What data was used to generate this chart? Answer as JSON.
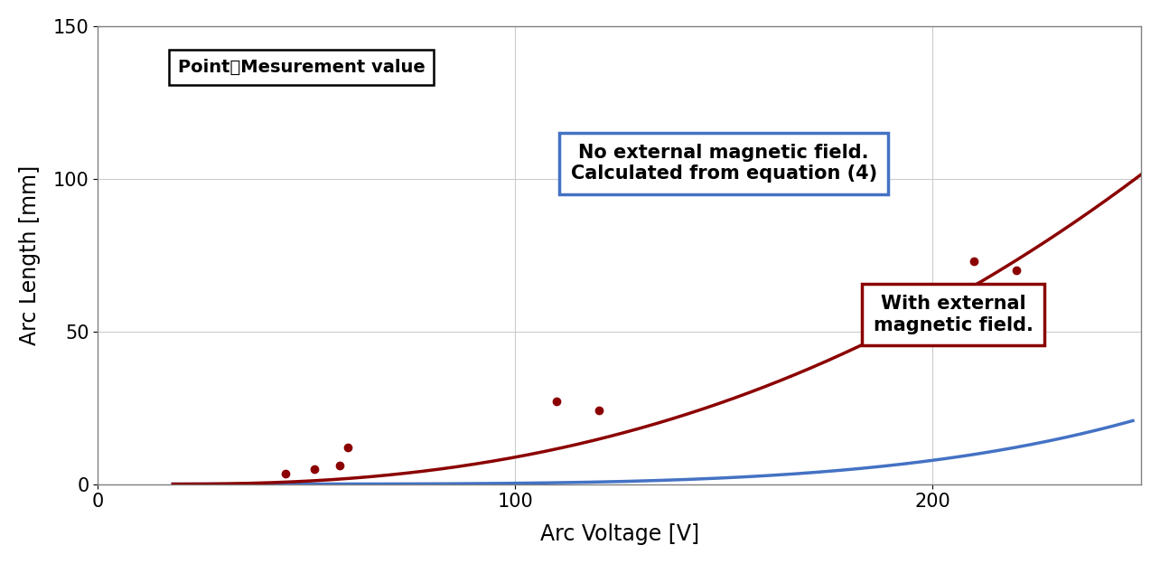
{
  "xlabel": "Arc Voltage [V]",
  "ylabel": "Arc Length [mm]",
  "xlim": [
    0,
    250
  ],
  "ylim": [
    0,
    150
  ],
  "xticks": [
    0,
    100,
    200
  ],
  "yticks": [
    0,
    50,
    100,
    150
  ],
  "blue_curve_color": "#4472C4",
  "red_curve_color": "#8B0000",
  "red_point_color": "#8B0000",
  "annotation_box_label": "Point：Mesurement value",
  "blue_label_text": "No external magnetic field.\nCalculated from equation (4)",
  "red_label_text": "With external\nmagnetic field.",
  "blue_label_box_color": "#4472C4",
  "red_label_box_color": "#8B0000",
  "red_data_points": [
    [
      45,
      3.5
    ],
    [
      52,
      5.0
    ],
    [
      58,
      6.0
    ],
    [
      60,
      12.0
    ],
    [
      110,
      27.0
    ],
    [
      120,
      24.0
    ],
    [
      210,
      73.0
    ],
    [
      220,
      70.0
    ]
  ],
  "blue_curve_a": 2.5e-09,
  "blue_curve_b": 4.2,
  "blue_curve_x0": 18,
  "red_curve_a": 0.00028,
  "red_curve_b": 2.35,
  "red_curve_x0": 18,
  "figsize": [
    12.84,
    6.24
  ],
  "dpi": 100,
  "background_color": "#FFFFFF",
  "grid_color": "#CCCCCC",
  "axis_label_fontsize": 17,
  "tick_fontsize": 15,
  "annotation_fontsize": 14
}
